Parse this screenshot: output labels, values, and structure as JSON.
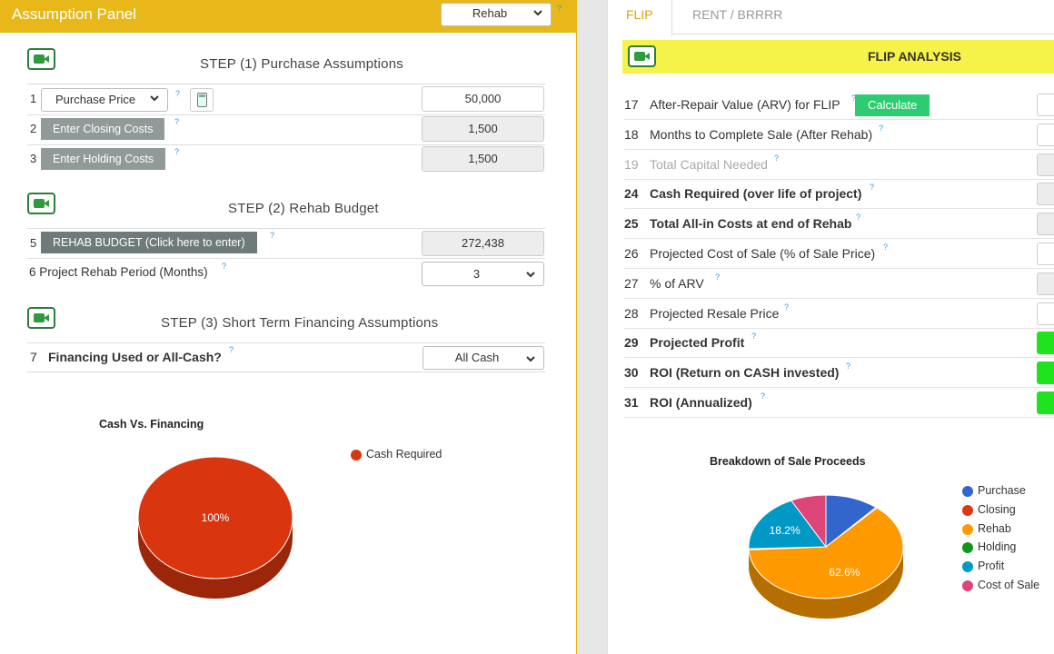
{
  "left_panel": {
    "title": "Assumption Panel",
    "mode_select": "Rehab",
    "step1": {
      "title": "STEP (1) Purchase Assumptions",
      "rows": [
        {
          "num": "1",
          "label": "Purchase Price",
          "value": "50,000"
        },
        {
          "num": "2",
          "label": "Enter Closing Costs",
          "value": "1,500"
        },
        {
          "num": "3",
          "label": "Enter Holding Costs",
          "value": "1,500"
        }
      ]
    },
    "step2": {
      "title": "STEP (2) Rehab Budget",
      "rows": [
        {
          "num": "5",
          "label": "REHAB BUDGET (Click here to enter)",
          "value": "272,438"
        },
        {
          "label": "6 Project Rehab Period (Months)",
          "value": "3"
        }
      ]
    },
    "step3": {
      "title": "STEP (3) Short Term Financing Assumptions",
      "rows": [
        {
          "num": "7",
          "label": "Financing Used or All-Cash?",
          "value": "All Cash"
        }
      ]
    },
    "help_mark": "?",
    "chart": {
      "title": "Cash Vs. Financing",
      "legend": [
        "Cash Required"
      ],
      "slice_label": "100%"
    }
  },
  "right_panel": {
    "tabs": [
      "FLIP",
      "RENT / BRRRR"
    ],
    "header": "FLIP ANALYSIS",
    "calculate_label": "Calculate",
    "rows": [
      {
        "num": "17",
        "label": "After-Repair Value (ARV) for FLIP"
      },
      {
        "num": "18",
        "label": "Months to Complete Sale (After Rehab)"
      },
      {
        "num": "19",
        "label": "Total Capital Needed"
      },
      {
        "num": "24",
        "label": "Cash Required (over life of project)"
      },
      {
        "num": "25",
        "label": "Total All-in Costs at end of Rehab"
      },
      {
        "num": "26",
        "label": "Projected Cost of Sale (% of Sale Price)"
      },
      {
        "num": "27",
        "label": "% of ARV"
      },
      {
        "num": "28",
        "label": "Projected Resale Price"
      },
      {
        "num": "29",
        "label": "Projected Profit"
      },
      {
        "num": "30",
        "label": "ROI (Return on CASH invested)"
      },
      {
        "num": "31",
        "label": "ROI (Annualized)"
      }
    ],
    "chart": {
      "title": "Breakdown of Sale Proceeds",
      "legend": [
        "Purchase",
        "Closing",
        "Rehab",
        "Holding",
        "Profit",
        "Cost of Sale"
      ],
      "labels": [
        "18.2%",
        "62.6%"
      ]
    }
  },
  "colors": {
    "header_yellow": "#e8b81a",
    "flip_bar": "#f5f24a",
    "green": "#1ee31e",
    "cash_required": "#d9360f",
    "purchase": "#3366cc",
    "closing": "#dc3912",
    "rehab": "#ff9900",
    "holding": "#109618",
    "profit": "#0099c6",
    "cost_of_sale": "#dd4477"
  },
  "chart_data": [
    {
      "type": "pie",
      "title": "Cash Vs. Financing",
      "categories": [
        "Cash Required"
      ],
      "values": [
        100
      ],
      "legend": "right"
    },
    {
      "type": "pie",
      "title": "Breakdown of Sale Proceeds",
      "categories": [
        "Purchase",
        "Closing",
        "Rehab",
        "Holding",
        "Profit",
        "Cost of Sale"
      ],
      "values": [
        11.2,
        0.3,
        62.6,
        0.3,
        18.2,
        7.4
      ],
      "legend": "right"
    }
  ]
}
